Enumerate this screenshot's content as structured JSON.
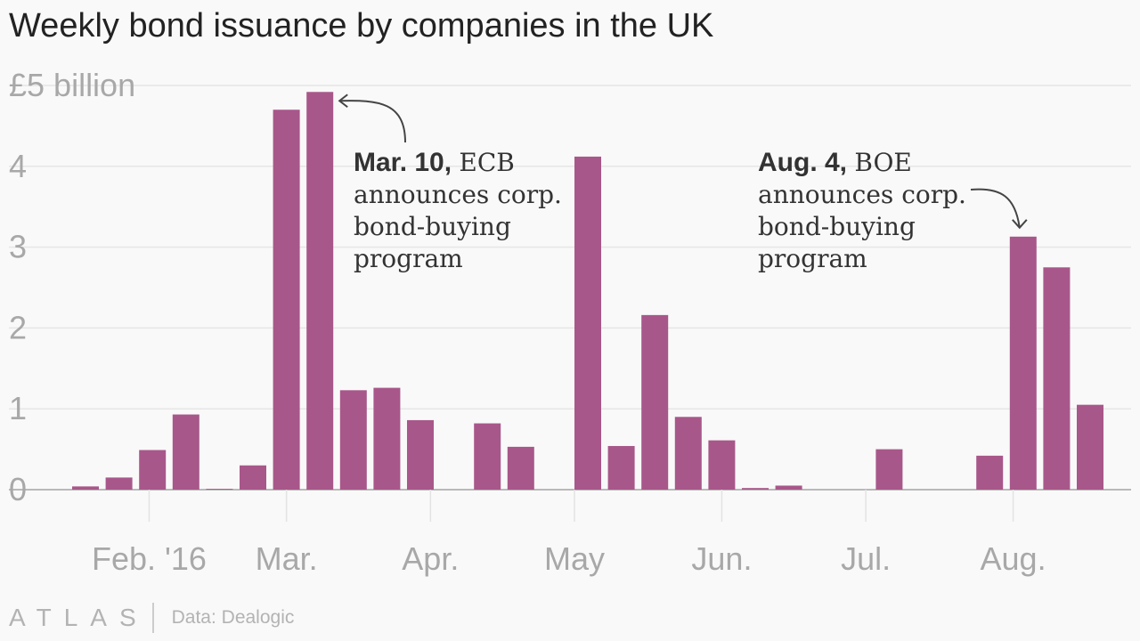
{
  "chart_data": {
    "type": "bar",
    "title": "Weekly bond issuance by companies in the UK",
    "unit_label": "£5 billion",
    "ylim": [
      0,
      5
    ],
    "y_ticks": [
      {
        "value": 0,
        "label": "0"
      },
      {
        "value": 1,
        "label": "1"
      },
      {
        "value": 2,
        "label": "2"
      },
      {
        "value": 3,
        "label": "3"
      },
      {
        "value": 4,
        "label": "4"
      },
      {
        "value": 5,
        "label": "£5 billion"
      }
    ],
    "x_ticks": [
      {
        "week": 2.3,
        "label": "Feb. '16"
      },
      {
        "week": 6.4,
        "label": "Mar."
      },
      {
        "week": 10.7,
        "label": "Apr."
      },
      {
        "week": 15.0,
        "label": "May"
      },
      {
        "week": 19.4,
        "label": "Jun."
      },
      {
        "week": 23.7,
        "label": "Jul."
      },
      {
        "week": 28.1,
        "label": "Aug."
      }
    ],
    "values": [
      0.04,
      0.15,
      0.49,
      0.93,
      0.01,
      0.3,
      4.7,
      4.92,
      1.23,
      1.26,
      0.86,
      0.0,
      0.82,
      0.53,
      0.0,
      4.12,
      0.54,
      2.16,
      0.9,
      0.61,
      0.02,
      0.05,
      0.0,
      0.0,
      0.5,
      0.0,
      0.0,
      0.42,
      3.13,
      2.75,
      1.05
    ],
    "bar_color": "#a8578a",
    "grid": true,
    "annotations": [
      {
        "bold": "Mar. 10,",
        "lines": [
          "ECB",
          "announces corp.",
          "bond-buying",
          "program"
        ]
      },
      {
        "bold": "Aug. 4,",
        "lines": [
          "BOE",
          "announces corp.",
          "bond-buying",
          "program"
        ]
      }
    ],
    "source": "Data: Dealogic",
    "logo": "ATLAS"
  }
}
